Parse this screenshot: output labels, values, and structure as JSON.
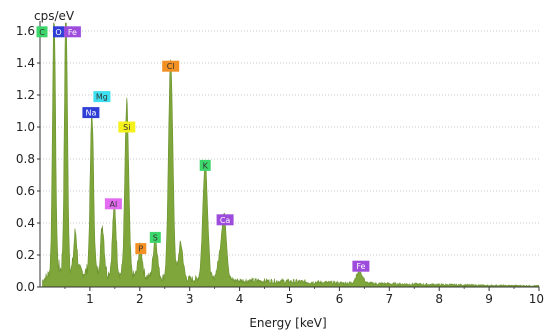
{
  "chart_data": {
    "type": "area",
    "title": "",
    "ylabel": "cps/eV",
    "xlabel": "Energy [keV]",
    "xlim": [
      0,
      10
    ],
    "ylim": [
      0,
      1.65
    ],
    "x_ticks": [
      "1",
      "2",
      "3",
      "4",
      "5",
      "6",
      "7",
      "8",
      "9",
      "10"
    ],
    "y_ticks": [
      "0.0",
      "0.2",
      "0.4",
      "0.6",
      "0.8",
      "1.0",
      "1.2",
      "1.4",
      "1.6"
    ],
    "grid": true,
    "fill_color": "#7ea63a",
    "spectrum": {
      "background": [
        [
          0.05,
          0.04
        ],
        [
          0.3,
          0.12
        ],
        [
          0.6,
          0.1
        ],
        [
          1.0,
          0.09
        ],
        [
          1.5,
          0.08
        ],
        [
          2.0,
          0.065
        ],
        [
          3.0,
          0.05
        ],
        [
          4.0,
          0.04
        ],
        [
          5.0,
          0.035
        ],
        [
          6.0,
          0.025
        ],
        [
          7.0,
          0.02
        ],
        [
          8.0,
          0.015
        ],
        [
          9.0,
          0.01
        ],
        [
          10.0,
          0.008
        ]
      ],
      "peaks": [
        {
          "element": "C",
          "energy": 0.28,
          "height": 1.65
        },
        {
          "element": "O",
          "energy": 0.52,
          "height": 1.65
        },
        {
          "element": "Fe",
          "energy": 0.71,
          "height": 0.25
        },
        {
          "element": "Na",
          "energy": 1.04,
          "height": 1.0
        },
        {
          "element": "Mg",
          "energy": 1.25,
          "height": 0.3
        },
        {
          "element": "Al",
          "energy": 1.49,
          "height": 0.44
        },
        {
          "element": "Si",
          "energy": 1.74,
          "height": 1.08
        },
        {
          "element": "P",
          "energy": 2.01,
          "height": 0.19
        },
        {
          "element": "S",
          "energy": 2.31,
          "height": 0.25
        },
        {
          "element": "Cl",
          "energy": 2.62,
          "height": 1.37
        },
        {
          "element": "Cl",
          "energy": 2.82,
          "height": 0.22
        },
        {
          "element": "K",
          "energy": 3.31,
          "height": 0.74
        },
        {
          "element": "Ca",
          "energy": 3.69,
          "height": 0.4
        },
        {
          "element": "K",
          "energy": 3.59,
          "height": 0.1
        },
        {
          "element": "Fe",
          "energy": 6.4,
          "height": 0.07
        }
      ]
    },
    "labels": [
      {
        "text": "C",
        "energy": 0.04,
        "y": 1.595,
        "color": "#3dd66b"
      },
      {
        "text": "O",
        "energy": 0.37,
        "y": 1.595,
        "color": "#2f3fd6"
      },
      {
        "text": "Fe",
        "energy": 0.65,
        "y": 1.595,
        "color": "#9d4cdc"
      },
      {
        "text": "Mg",
        "energy": 1.24,
        "y": 1.19,
        "color": "#3ee0ef"
      },
      {
        "text": "Na",
        "energy": 1.02,
        "y": 1.09,
        "color": "#2f3fd6"
      },
      {
        "text": "Cl",
        "energy": 2.62,
        "y": 1.38,
        "color": "#f29024"
      },
      {
        "text": "Si",
        "energy": 1.74,
        "y": 1.0,
        "color": "#f4f11c"
      },
      {
        "text": "K",
        "energy": 3.31,
        "y": 0.76,
        "color": "#3dd66b"
      },
      {
        "text": "Al",
        "energy": 1.47,
        "y": 0.52,
        "color": "#e26bf2"
      },
      {
        "text": "Ca",
        "energy": 3.71,
        "y": 0.42,
        "color": "#9d4cdc"
      },
      {
        "text": "S",
        "energy": 2.31,
        "y": 0.31,
        "color": "#3dd66b"
      },
      {
        "text": "P",
        "energy": 2.02,
        "y": 0.24,
        "color": "#f29024"
      },
      {
        "text": "Fe",
        "energy": 6.43,
        "y": 0.13,
        "color": "#9d4cdc"
      }
    ]
  }
}
